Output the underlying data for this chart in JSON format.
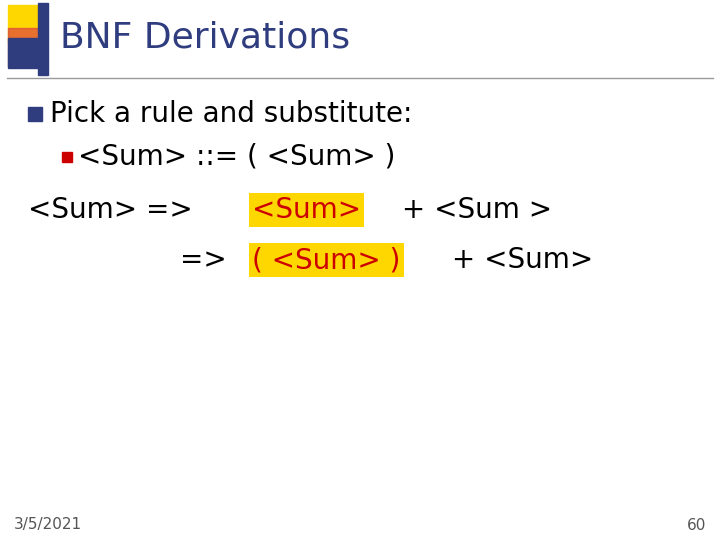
{
  "title": "BNF Derivations",
  "title_color": "#2F3C7E",
  "title_fontsize": 26,
  "bg_color": "#FFFFFF",
  "bullet1": "Pick a rule and substitute:",
  "bullet1_color": "#000000",
  "bullet1_fontsize": 20,
  "bullet1_marker_color": "#2F3C7E",
  "bullet2": "<Sum> ::= ( <Sum> )",
  "bullet2_color": "#000000",
  "bullet2_fontsize": 20,
  "bullet2_marker_color": "#CC0000",
  "line3_prefix": "<Sum> => ",
  "line3_highlight": "<Sum>",
  "line3_suffix": " + <Sum >",
  "line3_color": "#000000",
  "line3_fontsize": 20,
  "line4_prefix": "=> ",
  "line4_highlight": "( <Sum> )",
  "line4_suffix": " + <Sum>",
  "line4_color": "#000000",
  "line4_fontsize": 20,
  "highlight_bg": "#FFD700",
  "highlight_fg": "#CC0000",
  "footer_date": "3/5/2021",
  "footer_page": "60",
  "footer_fontsize": 11,
  "footer_color": "#555555",
  "divider_color": "#999999",
  "logo_yellow": "#FFD700",
  "logo_red": "#DD4444",
  "logo_blue": "#2F3C7E"
}
